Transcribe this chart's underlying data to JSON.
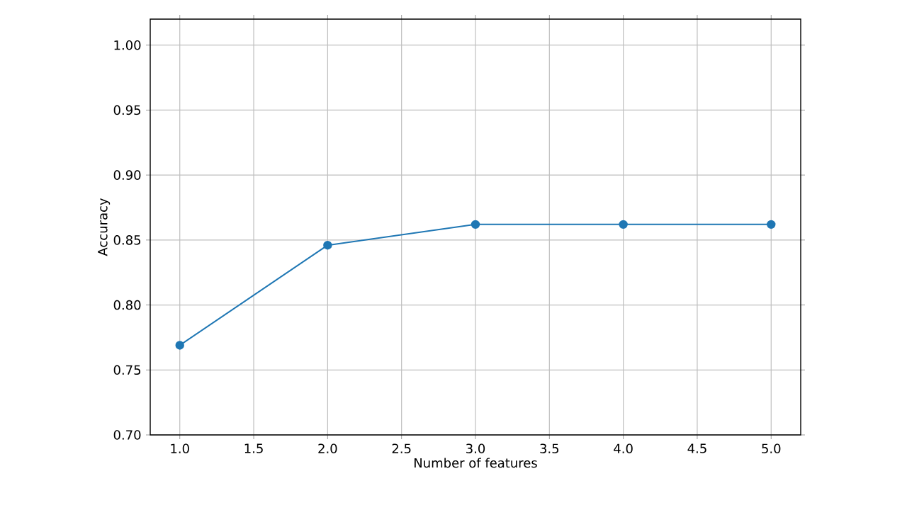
{
  "chart_data": {
    "type": "line",
    "xlabel": "Number of features",
    "ylabel": "Accuracy",
    "x": [
      1,
      2,
      3,
      4,
      5
    ],
    "series": [
      {
        "color": "#1f77b4",
        "values": [
          0.769,
          0.846,
          0.862,
          0.862,
          0.862
        ]
      }
    ],
    "xlim": [
      0.8,
      5.2
    ],
    "ylim": [
      0.7,
      1.02
    ],
    "xticks": [
      {
        "value": 1,
        "label": "1.0"
      },
      {
        "value": 1.5,
        "label": "1.5"
      },
      {
        "value": 2,
        "label": "2.0"
      },
      {
        "value": 2.5,
        "label": "2.5"
      },
      {
        "value": 3,
        "label": "3.0"
      },
      {
        "value": 3.5,
        "label": "3.5"
      },
      {
        "value": 4,
        "label": "4.0"
      },
      {
        "value": 4.5,
        "label": "4.5"
      },
      {
        "value": 5,
        "label": "5.0"
      }
    ],
    "yticks": [
      {
        "value": 0.7,
        "label": "0.70"
      },
      {
        "value": 0.75,
        "label": "0.75"
      },
      {
        "value": 0.8,
        "label": "0.80"
      },
      {
        "value": 0.85,
        "label": "0.85"
      },
      {
        "value": 0.9,
        "label": "0.90"
      },
      {
        "value": 0.95,
        "label": "0.95"
      },
      {
        "value": 1.0,
        "label": "1.00"
      }
    ],
    "grid": true,
    "marker": "circle",
    "line_style": "solid",
    "legend": false
  }
}
